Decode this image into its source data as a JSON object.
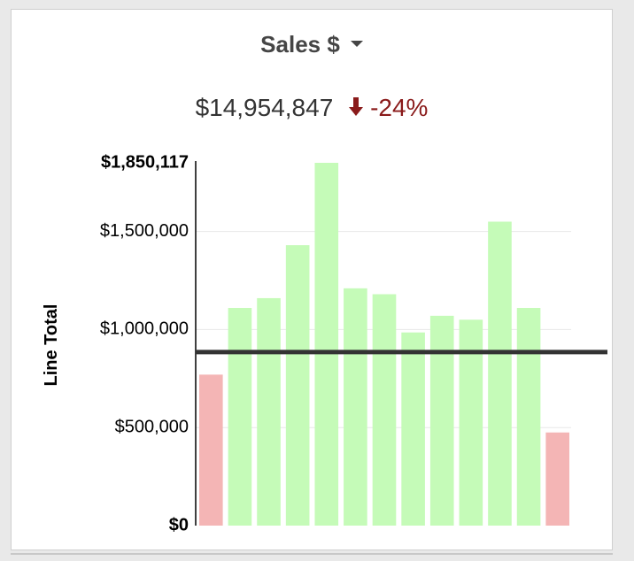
{
  "header": {
    "metric_label": "Sales $",
    "dropdown_icon": "caret-down-icon",
    "total_value": "$14,954,847",
    "change_icon": "arrow-down-icon",
    "change_text": "-24%",
    "change_color": "#8a1a1a"
  },
  "chart_data": {
    "type": "bar",
    "title": "Sales $",
    "ylabel": "Line Total",
    "xlabel": "",
    "ylim": [
      0,
      1850117
    ],
    "yticks": [
      {
        "value": 0,
        "label": "$0",
        "bold": true
      },
      {
        "value": 500000,
        "label": "$500,000",
        "bold": false
      },
      {
        "value": 1000000,
        "label": "$1,000,000",
        "bold": false
      },
      {
        "value": 1500000,
        "label": "$1,500,000",
        "bold": false
      },
      {
        "value": 1850117,
        "label": "$1,850,117",
        "bold": true
      }
    ],
    "values": [
      770000,
      1110000,
      1160000,
      1430000,
      1850117,
      1210000,
      1180000,
      985000,
      1070000,
      1050000,
      1550000,
      1110000,
      475000
    ],
    "bar_colors": [
      "#f4b5b5",
      "#c5fbb8",
      "#c5fbb8",
      "#c5fbb8",
      "#c5fbb8",
      "#c5fbb8",
      "#c5fbb8",
      "#c5fbb8",
      "#c5fbb8",
      "#c5fbb8",
      "#c5fbb8",
      "#c5fbb8",
      "#f4b5b5"
    ],
    "reference_line": 885000,
    "grid": true
  },
  "colors": {
    "above": "#c5fbb8",
    "below": "#f4b5b5",
    "reference": "#333333",
    "gridline": "#e8e8e8"
  }
}
